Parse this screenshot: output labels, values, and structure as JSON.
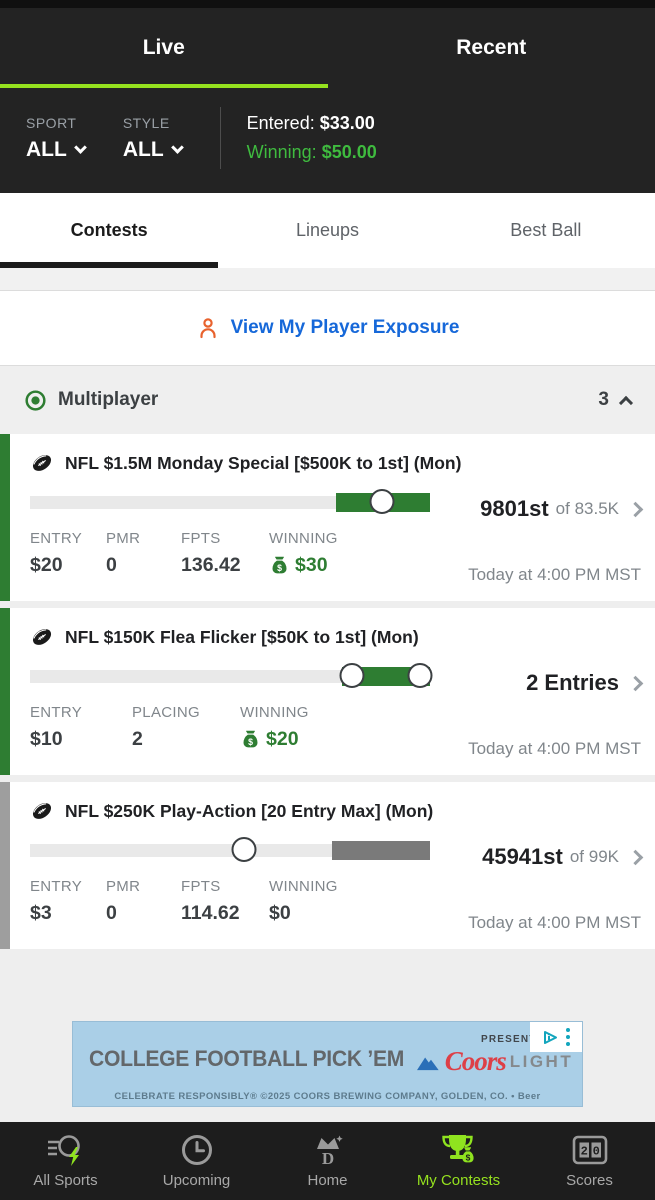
{
  "colors": {
    "accent_lime": "#95e11f",
    "winning_bright_green": "#3fbb3f",
    "dark_green": "#2e7d32",
    "fill_gray": "#7a7a7a",
    "accent_gray": "#9e9e9e",
    "link_blue": "#1668d9",
    "person_orange": "#e8622d"
  },
  "header": {
    "tabs": [
      {
        "label": "Live",
        "active": true
      },
      {
        "label": "Recent",
        "active": false
      }
    ],
    "filters": {
      "sport_label": "SPORT",
      "sport_value": "ALL",
      "style_label": "STYLE",
      "style_value": "ALL"
    },
    "summary": {
      "entered_label": "Entered: ",
      "entered_value": "$33.00",
      "winning_label": "Winning: ",
      "winning_value": "$50.00"
    }
  },
  "section_tabs": [
    {
      "label": "Contests",
      "active": true
    },
    {
      "label": "Lineups",
      "active": false
    },
    {
      "label": "Best Ball",
      "active": false
    }
  ],
  "exposure": {
    "label": "View My Player Exposure"
  },
  "group": {
    "title": "Multiplayer",
    "count": "3"
  },
  "contests": [
    {
      "title": "NFL $1.5M Monday Special [$500K to 1st] (Mon)",
      "rank": "9801st",
      "rank_suffix": "of 83.5K",
      "accent_color": "#2e7d32",
      "progress": {
        "fill_start_pct": 76.5,
        "fill_color": "#2e7d32",
        "markers_pct": [
          88
        ]
      },
      "stats": [
        {
          "label": "ENTRY",
          "value": "$20"
        },
        {
          "label": "PMR",
          "value": "0"
        },
        {
          "label": "FPTS",
          "value": "136.42"
        },
        {
          "label": "WINNING",
          "value": "$30"
        }
      ],
      "time": "Today at 4:00 PM MST"
    },
    {
      "title": "NFL $150K Flea Flicker [$50K to 1st] (Mon)",
      "rank": "2 Entries",
      "rank_suffix": "",
      "accent_color": "#2e7d32",
      "progress": {
        "fill_start_pct": 78,
        "fill_color": "#2e7d32",
        "markers_pct": [
          80.5,
          97.5
        ]
      },
      "stats": [
        {
          "label": "ENTRY",
          "value": "$10"
        },
        {
          "label": "PLACING",
          "value": "2"
        },
        {
          "label": "WINNING",
          "value": "$20"
        }
      ],
      "time": "Today at 4:00 PM MST"
    },
    {
      "title": "NFL $250K Play-Action [20 Entry Max] (Mon)",
      "rank": "45941st",
      "rank_suffix": "of 99K",
      "accent_color": "#9e9e9e",
      "progress": {
        "fill_start_pct": 75.5,
        "fill_color": "#7a7a7a",
        "markers_pct": [
          53.5
        ]
      },
      "stats": [
        {
          "label": "ENTRY",
          "value": "$3"
        },
        {
          "label": "PMR",
          "value": "0"
        },
        {
          "label": "FPTS",
          "value": "114.62"
        },
        {
          "label": "WINNING",
          "value": "$0"
        }
      ],
      "time": "Today at 4:00 PM MST"
    }
  ],
  "ad": {
    "headline": "COLLEGE FOOTBALL PICK ’EM",
    "presented_by": "PRESENTED BY",
    "brand_script": "Coors",
    "brand_word": "LIGHT",
    "disclaimer": "CELEBRATE RESPONSIBLY® ©2025 COORS BREWING COMPANY, GOLDEN, CO. • Beer"
  },
  "bottom_nav": [
    {
      "label": "All Sports",
      "active": false
    },
    {
      "label": "Upcoming",
      "active": false
    },
    {
      "label": "Home",
      "active": false
    },
    {
      "label": "My Contests",
      "active": true
    },
    {
      "label": "Scores",
      "active": false
    }
  ]
}
